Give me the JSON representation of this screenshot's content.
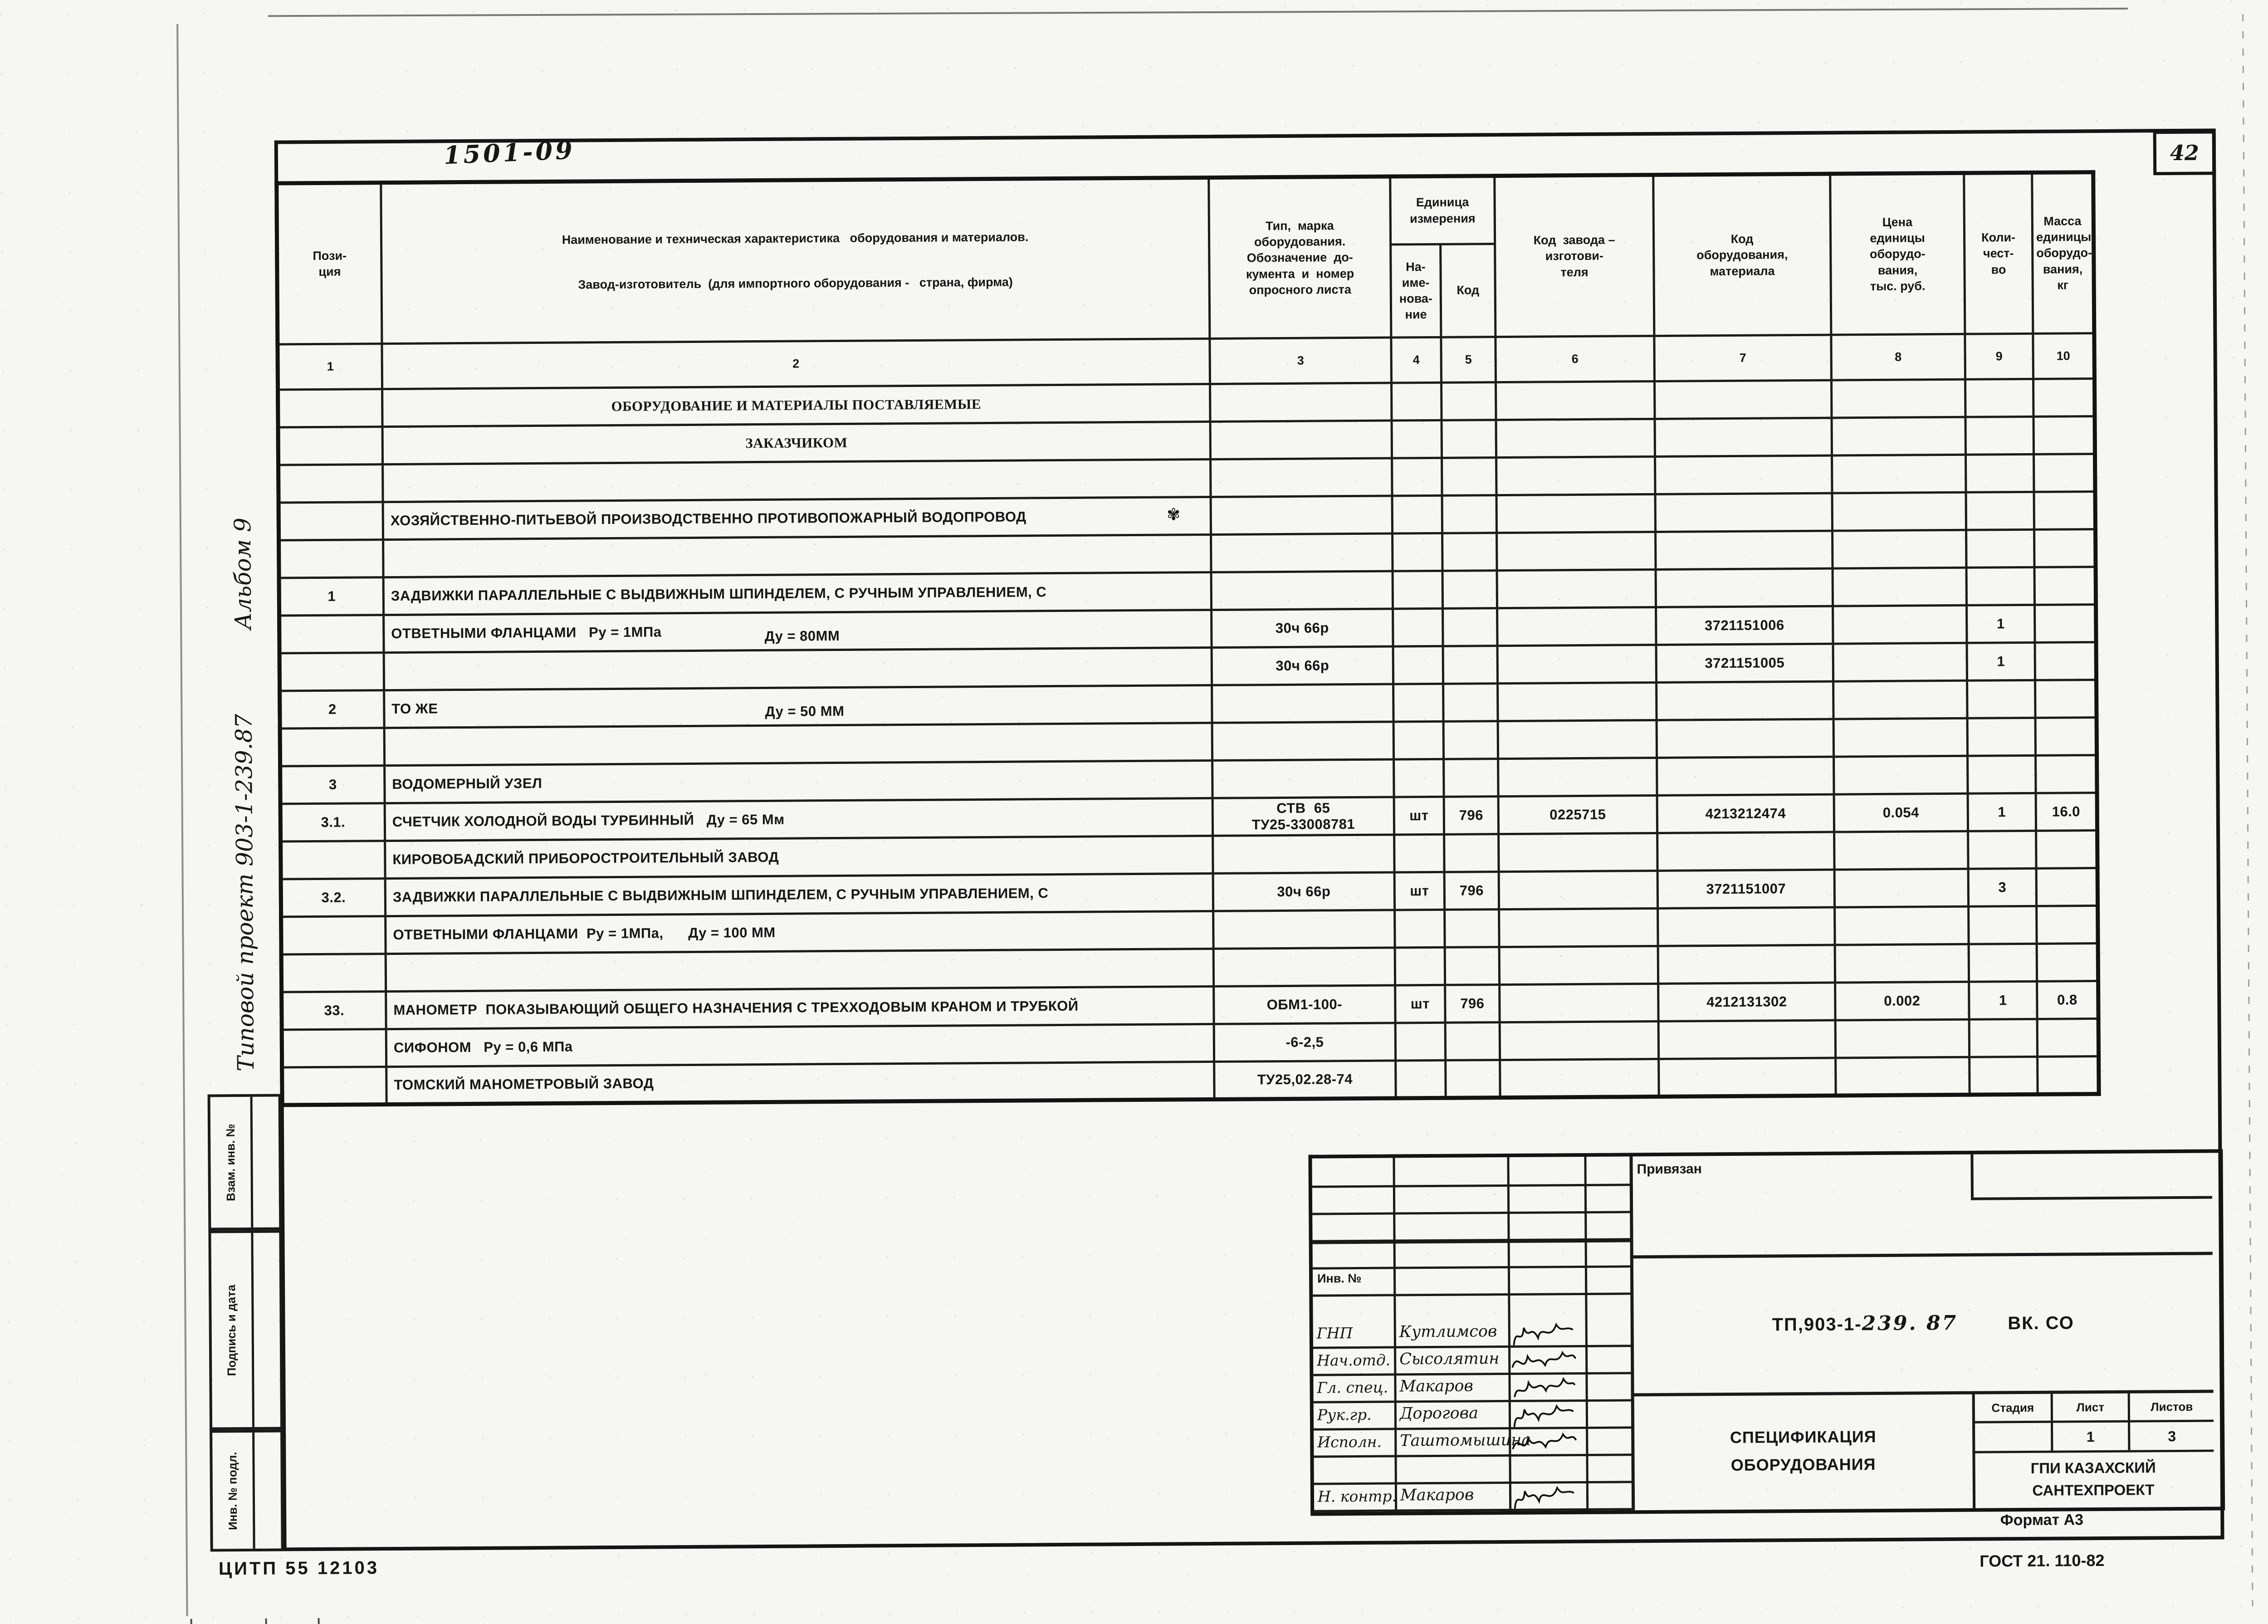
{
  "sheet": {
    "page_number": "42",
    "top_mark": "1501-09",
    "margin_note_main": "Типовой  проект   903-1-239.87",
    "margin_note_album": "Альбом  9",
    "margin_stamps": [
      "Взам. инв. №",
      "Подпись и дата",
      "Инв. № подл."
    ],
    "footer_left": "ЦИТП  55 12103",
    "format_label": "Формат А3",
    "gost_label": "ГОСТ 21. 110-82"
  },
  "table": {
    "headers": {
      "pos": "Пози-\nция",
      "name_line1": "Наименование и техническая характеристика   оборудования и материалов.",
      "name_line2": "Завод-изготовитель  (для импортного оборудования -   страна, фирма)",
      "type": "Тип,  марка\nоборудования.\nОбозначение  до-\nкумента  и  номер\nопросного листа",
      "unit_group": "Единица\nизмерения",
      "unit_name": "На-\nиме-\nнова-\nние",
      "unit_code": "Код",
      "factory": "Код  завода –\nизготови-\nтеля",
      "equip": "Код\nоборудования,\nматериала",
      "price": "Цена\nединицы\nоборудо-\nвания,\nтыс. руб.",
      "qty": "Коли-\nчест-\nво",
      "mass": "Масса\nединицы\nоборудо-\nвания,\nкг",
      "numbers": [
        "1",
        "2",
        "3",
        "4",
        "5",
        "6",
        "7",
        "8",
        "9",
        "10"
      ]
    },
    "rows": [
      {
        "name": "ОБОРУДОВАНИЕ И МАТЕРИАЛЫ ПОСТАВЛЯЕМЫЕ",
        "align": "center",
        "serif": true
      },
      {
        "name": "ЗАКАЗЧИКОМ",
        "align": "center",
        "serif": true
      },
      {},
      {
        "name": "ХОЗЯЙСТВЕННО-ПИТЬЕВОЙ ПРОИЗВОДСТВЕННО ПРОТИВОПОЖАРНЫЙ ВОДОПРОВОД",
        "mark": "✾"
      },
      {},
      {
        "pos": "1",
        "name": "ЗАДВИЖКИ ПАРАЛЛЕЛЬНЫЕ С ВЫДВИЖНЫМ ШПИНДЕЛЕМ, С РУЧНЫМ УПРАВЛЕНИЕМ, С"
      },
      {
        "name": "ОТВЕТНЫМИ ФЛАНЦАМИ   Ру = 1МПа",
        "name2": "Ду = 80ММ",
        "type": "30ч 66р",
        "equip": "3721151006",
        "qty": "1"
      },
      {
        "type": "30ч 66р",
        "equip": "3721151005",
        "qty": "1"
      },
      {
        "pos": "2",
        "name": "ТО ЖЕ",
        "name2": "Ду = 50 ММ"
      },
      {},
      {
        "pos": "3",
        "name": "ВОДОМЕРНЫЙ УЗЕЛ"
      },
      {
        "pos": "3.1.",
        "name": "СЧЕТЧИК ХОЛОДНОЙ ВОДЫ ТУРБИННЫЙ   Ду = 65 Мм",
        "type": "СТВ  65\nТУ25-33008781",
        "unit": "шт",
        "code": "796",
        "factory": "0225715",
        "equip": "4213212474",
        "price": "0.054",
        "qty": "1",
        "mass": "16.0"
      },
      {
        "name": "КИРОВОБАДСКИЙ ПРИБОРОСТРОИТЕЛЬНЫЙ ЗАВОД"
      },
      {
        "pos": "3.2.",
        "name": "ЗАДВИЖКИ ПАРАЛЛЕЛЬНЫЕ С ВЫДВИЖНЫМ ШПИНДЕЛЕМ, С РУЧНЫМ УПРАВЛЕНИЕМ, С",
        "type": "30ч 66р",
        "unit": "шт",
        "code": "796",
        "equip": "3721151007",
        "qty": "3"
      },
      {
        "name": "ОТВЕТНЫМИ ФЛАНЦАМИ  Ру = 1МПа,      Ду = 100 ММ"
      },
      {},
      {
        "pos": "33.",
        "name": "МАНОМЕТР  ПОКАЗЫВАЮЩИЙ ОБЩЕГО НАЗНАЧЕНИЯ С ТРЕХХОДОВЫМ КРАНОМ И ТРУБКОЙ",
        "type": "ОБМ1-100-",
        "unit": "шт",
        "code": "796",
        "equip": "4212131302",
        "price": "0.002",
        "qty": "1",
        "mass": "0.8"
      },
      {
        "name": "СИФОНОМ   Ру = 0,6 МПа",
        "type": "-6-2,5"
      },
      {
        "name": "ТОМСКИЙ МАНОМЕТРОВЫЙ ЗАВОД",
        "type": "ТУ25,02.28-74"
      }
    ]
  },
  "titleblock": {
    "privyazan_label": "Привязан",
    "inv_label": "Инв.  №",
    "desig_prefix": "ТП,903-1-",
    "desig_number": "239. 87",
    "desig_suffix": "ВК. СО",
    "title_line1": "СПЕЦИФИКАЦИЯ",
    "title_line2": "ОБОРУДОВАНИЯ",
    "org_line1": "ГПИ  КАЗАХСКИЙ",
    "org_line2": "САНТЕХПРОЕКТ",
    "stage_label": "Стадия",
    "sheet_label": "Лист",
    "sheets_label": "Листов",
    "stage_value": "",
    "sheet_value": "1",
    "sheets_value": "3",
    "signatures": [
      {
        "role": "ГНП",
        "name": "Кутлимсов"
      },
      {
        "role": "Нач.отд.",
        "name": "Сысолятин"
      },
      {
        "role": "Гл. спец.",
        "name": "Макаров"
      },
      {
        "role": "Рук.гр.",
        "name": "Дорогова"
      },
      {
        "role": "Исполн.",
        "name": "Таштомышина"
      },
      {
        "role": "",
        "name": ""
      },
      {
        "role": "Н. контр.",
        "name": "Макаров"
      }
    ]
  }
}
